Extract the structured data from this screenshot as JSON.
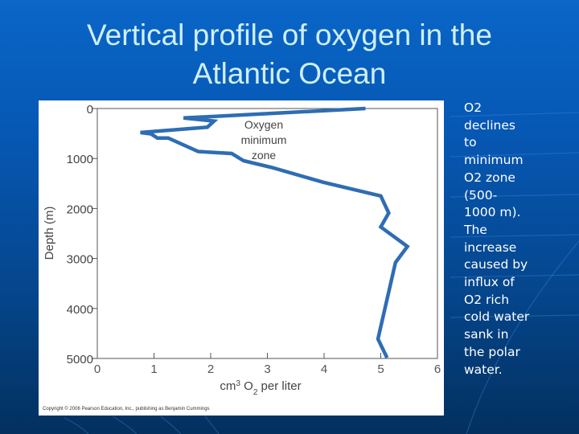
{
  "slide": {
    "title_line1": "Vertical profile of oxygen in the",
    "title_line2": "Atlantic Ocean",
    "side_text_lines": [
      "O2",
      "declines",
      "to",
      "minimum",
      "O2 zone",
      "(500-",
      "1000 m).",
      "The",
      "increase",
      "caused by",
      "influx of",
      "O2 rich",
      "cold water",
      "sank in",
      "the polar",
      "water."
    ],
    "colors": {
      "background_top": "#0a66c8",
      "background_bottom": "#03305f",
      "title": "#cfefff",
      "curve": "#2e6db4"
    }
  },
  "figure": {
    "annotation_lines": [
      "Oxygen",
      "minimum",
      "zone"
    ],
    "xlabel_prefix": "cm",
    "xlabel_sup": "3",
    "xlabel_o": " O",
    "xlabel_sub": "2",
    "xlabel_suffix": " per liter",
    "ylabel": "Depth (m)",
    "copyright": "Copyright © 2006 Pearson Education, Inc., publishing as Benjamin Cummings"
  },
  "chart_data": {
    "type": "line",
    "title": "Vertical profile of oxygen in the Atlantic Ocean",
    "xlabel": "cm3 O2 per liter",
    "ylabel": "Depth (m)",
    "xlim": [
      0,
      6
    ],
    "ylim": [
      5000,
      0
    ],
    "y_inverted": true,
    "grid": false,
    "x_ticks": [
      "0",
      "1",
      "2",
      "3",
      "4",
      "5",
      "6"
    ],
    "y_ticks": [
      "0",
      "1000",
      "2000",
      "3000",
      "4000",
      "5000"
    ],
    "annotations": [
      "Oxygen minimum zone"
    ],
    "series": [
      {
        "name": "Oxygen",
        "points": [
          {
            "o2": 4.73,
            "depth": 0
          },
          {
            "o2": 1.52,
            "depth": 190
          },
          {
            "o2": 2.06,
            "depth": 250
          },
          {
            "o2": 1.94,
            "depth": 375
          },
          {
            "o2": 0.76,
            "depth": 480
          },
          {
            "o2": 0.95,
            "depth": 510
          },
          {
            "o2": 1.06,
            "depth": 590
          },
          {
            "o2": 1.25,
            "depth": 590
          },
          {
            "o2": 1.78,
            "depth": 860
          },
          {
            "o2": 2.37,
            "depth": 900
          },
          {
            "o2": 2.58,
            "depth": 1045
          },
          {
            "o2": 3.08,
            "depth": 1180
          },
          {
            "o2": 3.98,
            "depth": 1475
          },
          {
            "o2": 5.0,
            "depth": 1750
          },
          {
            "o2": 5.14,
            "depth": 2090
          },
          {
            "o2": 5.0,
            "depth": 2370
          },
          {
            "o2": 5.47,
            "depth": 2760
          },
          {
            "o2": 5.26,
            "depth": 3080
          },
          {
            "o2": 4.95,
            "depth": 4610
          },
          {
            "o2": 5.11,
            "depth": 4985
          }
        ]
      }
    ]
  }
}
